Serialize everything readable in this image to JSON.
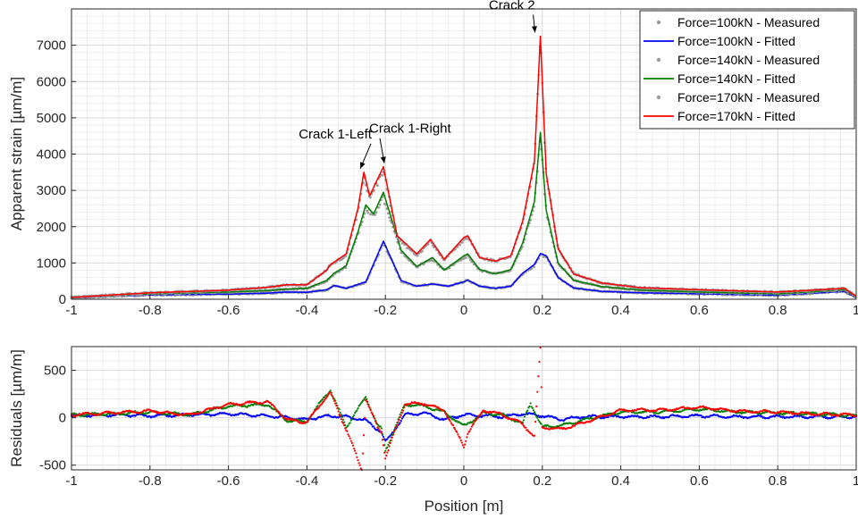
{
  "chart_data": [
    {
      "type": "line",
      "xlabel": "",
      "ylabel": "Apparent strain [µm/m]",
      "xlim": [
        -1,
        1
      ],
      "ylim": [
        0,
        8000
      ],
      "x_ticks": [
        -1,
        -0.8,
        -0.6,
        -0.4,
        -0.2,
        0,
        0.2,
        0.4,
        0.6,
        0.8,
        1
      ],
      "x_tick_labels": [
        "-1",
        "-0.8",
        "-0.6",
        "-0.4",
        "-0.2",
        "0",
        "0.2",
        "0.4",
        "0.6",
        "0.8",
        "1"
      ],
      "y_ticks": [
        0,
        1000,
        2000,
        3000,
        4000,
        5000,
        6000,
        7000
      ],
      "y_tick_labels": [
        "0",
        "1000",
        "2000",
        "3000",
        "4000",
        "5000",
        "6000",
        "7000"
      ],
      "grid": true,
      "legend_position": "top-right",
      "series": [
        {
          "name": "Force=100kN - Measured",
          "style": "dots",
          "color": "#9a9a9a",
          "x": [
            -1,
            -0.8,
            -0.6,
            -0.5,
            -0.45,
            -0.4,
            -0.35,
            -0.33,
            -0.3,
            -0.25,
            -0.205,
            -0.16,
            -0.12,
            -0.08,
            -0.04,
            0.0,
            0.01,
            0.04,
            0.08,
            0.12,
            0.15,
            0.18,
            0.195,
            0.21,
            0.24,
            0.28,
            0.35,
            0.45,
            0.6,
            0.8,
            0.97,
            1
          ],
          "y": [
            40,
            120,
            140,
            170,
            200,
            190,
            260,
            380,
            300,
            460,
            1550,
            500,
            360,
            420,
            360,
            480,
            530,
            360,
            300,
            360,
            700,
            920,
            1220,
            1180,
            600,
            310,
            220,
            180,
            150,
            110,
            220,
            40
          ]
        },
        {
          "name": "Force=100kN - Fitted",
          "style": "line",
          "color": "#0000ff",
          "x": [
            -1,
            -0.8,
            -0.6,
            -0.5,
            -0.45,
            -0.4,
            -0.35,
            -0.33,
            -0.3,
            -0.25,
            -0.205,
            -0.16,
            -0.12,
            -0.08,
            -0.04,
            0.0,
            0.01,
            0.04,
            0.08,
            0.12,
            0.15,
            0.18,
            0.195,
            0.21,
            0.24,
            0.28,
            0.35,
            0.45,
            0.6,
            0.8,
            0.97,
            1
          ],
          "y": [
            40,
            120,
            140,
            170,
            200,
            190,
            260,
            380,
            300,
            480,
            1600,
            520,
            360,
            420,
            360,
            480,
            530,
            360,
            300,
            360,
            720,
            960,
            1260,
            1200,
            600,
            310,
            220,
            180,
            150,
            110,
            220,
            40
          ]
        },
        {
          "name": "Force=140kN - Measured",
          "style": "dots",
          "color": "#9a9a9a",
          "x": [
            -1,
            -0.8,
            -0.6,
            -0.5,
            -0.45,
            -0.4,
            -0.35,
            -0.33,
            -0.3,
            -0.27,
            -0.25,
            -0.23,
            -0.205,
            -0.16,
            -0.12,
            -0.08,
            -0.05,
            0.0,
            0.01,
            0.04,
            0.08,
            0.12,
            0.15,
            0.18,
            0.195,
            0.21,
            0.24,
            0.28,
            0.35,
            0.45,
            0.6,
            0.8,
            0.97,
            1
          ],
          "y": [
            50,
            150,
            200,
            240,
            280,
            300,
            500,
            700,
            900,
            1800,
            2500,
            2300,
            2800,
            1300,
            900,
            1100,
            800,
            1150,
            1200,
            800,
            700,
            800,
            1500,
            2600,
            4550,
            2400,
            1000,
            520,
            350,
            250,
            200,
            150,
            260,
            60
          ]
        },
        {
          "name": "Force=140kN - Fitted",
          "style": "line",
          "color": "#007f00",
          "x": [
            -1,
            -0.8,
            -0.6,
            -0.5,
            -0.45,
            -0.4,
            -0.35,
            -0.33,
            -0.3,
            -0.27,
            -0.25,
            -0.23,
            -0.205,
            -0.16,
            -0.12,
            -0.08,
            -0.05,
            0.0,
            0.01,
            0.04,
            0.08,
            0.12,
            0.15,
            0.18,
            0.195,
            0.21,
            0.24,
            0.28,
            0.35,
            0.45,
            0.6,
            0.8,
            0.97,
            1
          ],
          "y": [
            50,
            150,
            200,
            240,
            280,
            300,
            520,
            720,
            920,
            1850,
            2600,
            2350,
            2950,
            1350,
            900,
            1150,
            800,
            1200,
            1250,
            820,
            700,
            820,
            1550,
            2700,
            4600,
            2450,
            1000,
            520,
            350,
            250,
            200,
            150,
            260,
            60
          ]
        },
        {
          "name": "Force=170kN - Measured",
          "style": "dots",
          "color": "#9a9a9a",
          "x": [
            -1,
            -0.8,
            -0.6,
            -0.5,
            -0.45,
            -0.4,
            -0.35,
            -0.34,
            -0.3,
            -0.27,
            -0.255,
            -0.24,
            -0.205,
            -0.17,
            -0.12,
            -0.085,
            -0.05,
            0.0,
            0.01,
            0.04,
            0.08,
            0.12,
            0.15,
            0.18,
            0.195,
            0.21,
            0.24,
            0.28,
            0.35,
            0.45,
            0.6,
            0.8,
            0.97,
            1
          ],
          "y": [
            50,
            180,
            250,
            330,
            400,
            400,
            800,
            950,
            1200,
            2400,
            3350,
            2800,
            3550,
            1700,
            1200,
            1600,
            1100,
            1650,
            1700,
            1150,
            1050,
            1200,
            2100,
            3700,
            7300,
            3400,
            1400,
            700,
            450,
            320,
            260,
            200,
            300,
            80
          ]
        },
        {
          "name": "Force=170kN - Fitted",
          "style": "line",
          "color": "#ff0000",
          "x": [
            -1,
            -0.8,
            -0.6,
            -0.5,
            -0.45,
            -0.4,
            -0.35,
            -0.34,
            -0.3,
            -0.27,
            -0.255,
            -0.24,
            -0.205,
            -0.17,
            -0.12,
            -0.085,
            -0.05,
            0.0,
            0.01,
            0.04,
            0.08,
            0.12,
            0.15,
            0.18,
            0.195,
            0.21,
            0.24,
            0.28,
            0.35,
            0.45,
            0.6,
            0.8,
            0.97,
            1
          ],
          "y": [
            50,
            180,
            250,
            330,
            400,
            400,
            800,
            950,
            1250,
            2500,
            3500,
            2850,
            3650,
            1750,
            1250,
            1650,
            1100,
            1700,
            1750,
            1150,
            1050,
            1200,
            2150,
            3800,
            7250,
            3450,
            1400,
            700,
            450,
            320,
            260,
            200,
            300,
            80
          ]
        }
      ],
      "annotations": [
        {
          "text": "Crack 1-Left",
          "x": -0.255,
          "y": 3500
        },
        {
          "text": "Crack 1-Right",
          "x": -0.205,
          "y": 3650
        },
        {
          "text": "Crack 2",
          "x": 0.195,
          "y": 7250
        }
      ]
    },
    {
      "type": "scatter",
      "xlabel": "Position [m]",
      "ylabel": "Residuals [µm/m]",
      "xlim": [
        -1,
        1
      ],
      "ylim": [
        -550,
        750
      ],
      "x_ticks": [
        -1,
        -0.8,
        -0.6,
        -0.4,
        -0.2,
        0,
        0.2,
        0.4,
        0.6,
        0.8,
        1
      ],
      "x_tick_labels": [
        "-1",
        "-0.8",
        "-0.6",
        "-0.4",
        "-0.2",
        "0",
        "0.2",
        "0.4",
        "0.6",
        "0.8",
        "1"
      ],
      "y_ticks": [
        -500,
        0,
        500
      ],
      "y_tick_labels": [
        "-500",
        "0",
        "500"
      ],
      "grid": true,
      "series": [
        {
          "color": "#0000ff",
          "x": [
            -1,
            -0.9,
            -0.8,
            -0.7,
            -0.6,
            -0.5,
            -0.4,
            -0.35,
            -0.3,
            -0.25,
            -0.21,
            -0.2,
            -0.15,
            -0.1,
            -0.05,
            0,
            0.05,
            0.1,
            0.15,
            0.2,
            0.25,
            0.3,
            0.4,
            0.5,
            0.6,
            0.7,
            0.8,
            0.9,
            1
          ],
          "y": [
            20,
            30,
            20,
            30,
            40,
            20,
            -20,
            20,
            10,
            -30,
            -150,
            -260,
            30,
            50,
            -20,
            30,
            20,
            10,
            40,
            20,
            -20,
            10,
            10,
            10,
            20,
            10,
            10,
            10,
            10
          ]
        },
        {
          "color": "#007f00",
          "x": [
            -1,
            -0.9,
            -0.8,
            -0.7,
            -0.6,
            -0.5,
            -0.45,
            -0.4,
            -0.35,
            -0.34,
            -0.3,
            -0.25,
            -0.22,
            -0.21,
            -0.2,
            -0.15,
            -0.1,
            -0.05,
            0,
            0.05,
            0.1,
            0.15,
            0.17,
            0.2,
            0.25,
            0.3,
            0.4,
            0.5,
            0.6,
            0.7,
            0.8,
            0.9,
            1
          ],
          "y": [
            30,
            40,
            60,
            30,
            120,
            140,
            -30,
            -40,
            250,
            290,
            -100,
            220,
            -80,
            -120,
            -350,
            140,
            120,
            60,
            -90,
            50,
            30,
            -60,
            150,
            -100,
            -80,
            -30,
            60,
            60,
            90,
            60,
            50,
            40,
            20
          ]
        },
        {
          "color": "#ff0000",
          "x": [
            -1,
            -0.9,
            -0.8,
            -0.7,
            -0.6,
            -0.5,
            -0.45,
            -0.4,
            -0.35,
            -0.34,
            -0.3,
            -0.26,
            -0.25,
            -0.22,
            -0.21,
            -0.2,
            -0.15,
            -0.1,
            -0.05,
            0,
            0.01,
            0.05,
            0.1,
            0.15,
            0.18,
            0.195,
            0.2,
            0.25,
            0.3,
            0.4,
            0.5,
            0.6,
            0.7,
            0.8,
            0.9,
            1
          ],
          "y": [
            30,
            50,
            70,
            30,
            140,
            170,
            -20,
            -50,
            220,
            260,
            -120,
            -550,
            200,
            -100,
            -150,
            -420,
            150,
            150,
            80,
            -300,
            -160,
            80,
            30,
            -70,
            -200,
            730,
            -100,
            -120,
            -60,
            80,
            80,
            110,
            70,
            60,
            40,
            30
          ]
        }
      ]
    }
  ]
}
